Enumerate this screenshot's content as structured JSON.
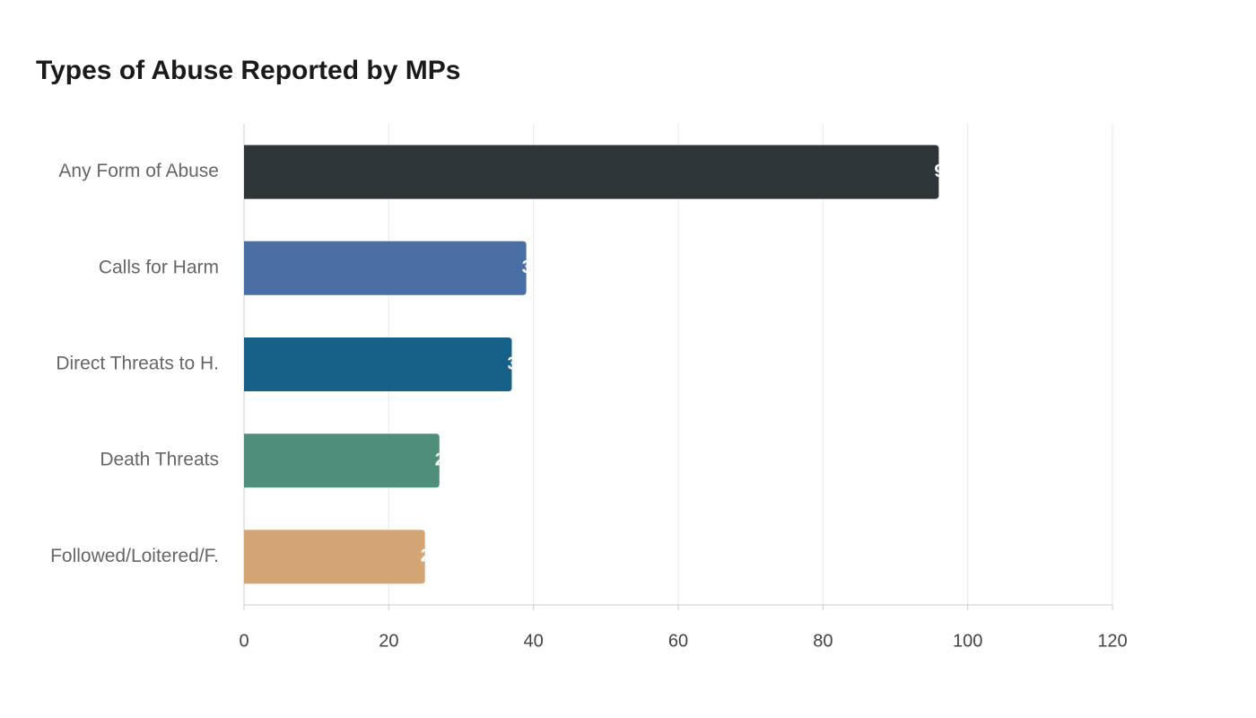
{
  "chart_data": {
    "type": "bar",
    "orientation": "horizontal",
    "title": "Types of Abuse Reported by MPs",
    "categories": [
      "Any Form of Abuse",
      "Calls for Harm",
      "Direct Threats to H.",
      "Death Threats",
      "Followed/Loitered/F."
    ],
    "values": [
      96,
      39,
      37,
      27,
      25
    ],
    "colors": [
      "#2e3538",
      "#4a6fa5",
      "#176087",
      "#4f8e7a",
      "#d3a574"
    ],
    "xlim": [
      0,
      120
    ],
    "xticks": [
      0,
      20,
      40,
      60,
      80,
      100,
      120
    ],
    "grid": true
  }
}
